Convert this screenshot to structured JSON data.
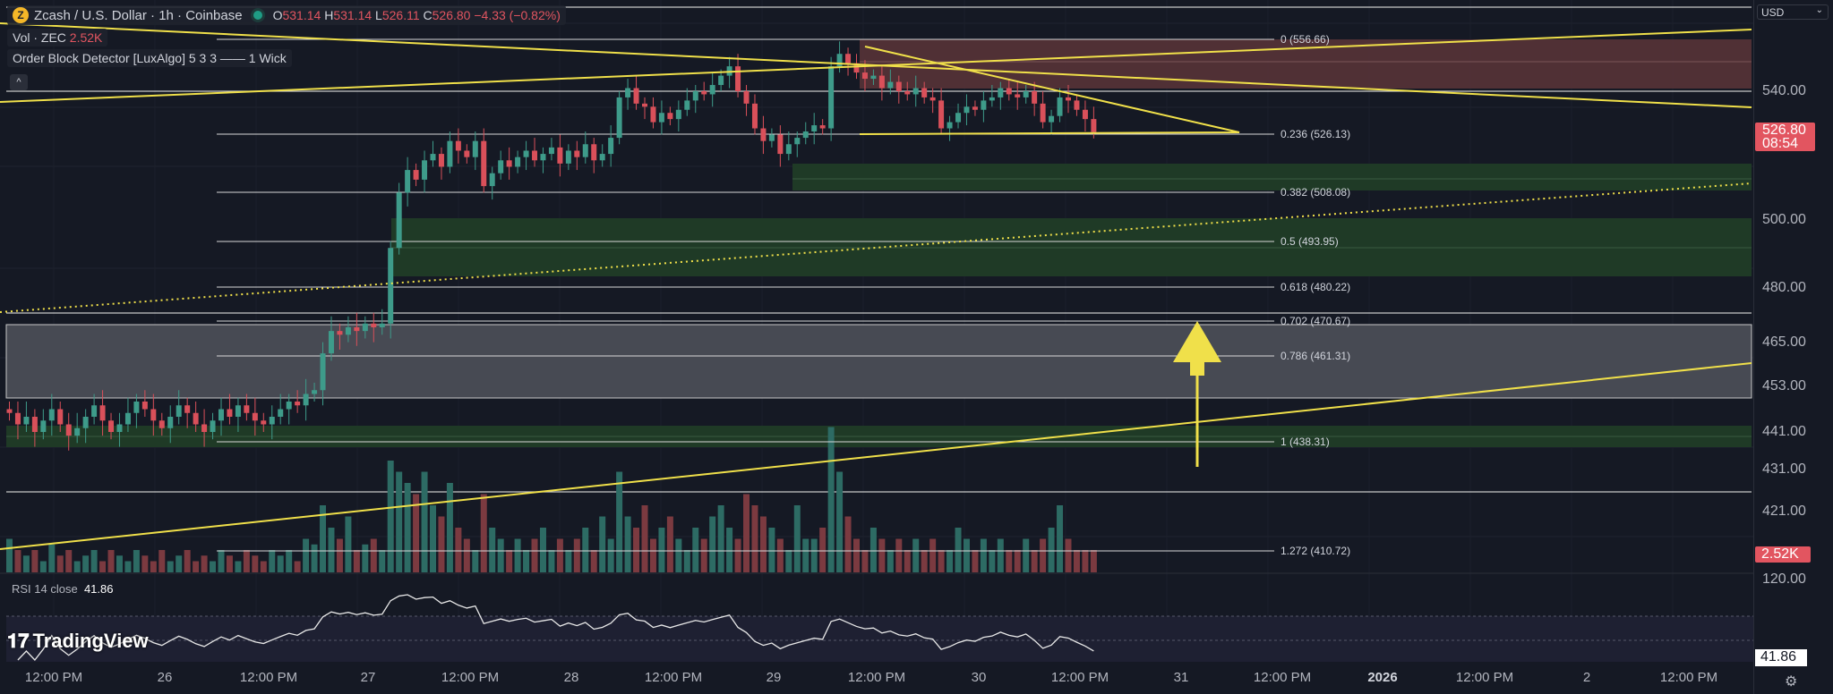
{
  "header": {
    "coin_symbol": "Z",
    "title": "Zcash / U.S. Dollar · 1h · Coinbase",
    "o_label": "O",
    "o": "531.14",
    "h_label": "H",
    "h": "531.14",
    "l_label": "L",
    "l": "526.11",
    "c_label": "C",
    "c": "526.80",
    "change": "−4.33 (−0.82%)"
  },
  "volume_legend": {
    "label": "Vol · ZEC",
    "value": "2.52K"
  },
  "indicator_legend": {
    "label": "Order Block Detector [LuxAlgo] 5 3 3 —— 1 Wick"
  },
  "collapse_icon": "^",
  "currency": "USD",
  "price_axis": {
    "labels": [
      "540.00",
      "500.00",
      "480.00",
      "465.00",
      "453.00",
      "441.00",
      "431.00",
      "421.00"
    ],
    "current_price": "526.80",
    "countdown": "08:54",
    "volume_tag": "2.52K",
    "rsi_top": "120.00",
    "rsi_tag": "41.86"
  },
  "fib_levels": [
    {
      "label": "0 (556.66)",
      "price": 556.66
    },
    {
      "label": "0.236 (526.13)",
      "price": 526.13
    },
    {
      "label": "0.382 (508.08)",
      "price": 508.08
    },
    {
      "label": "0.5 (493.95)",
      "price": 493.95
    },
    {
      "label": "0.618 (480.22)",
      "price": 480.22
    },
    {
      "label": "0.702 (470.67)",
      "price": 470.67
    },
    {
      "label": "0.786 (461.31)",
      "price": 461.31
    },
    {
      "label": "1 (438.31)",
      "price": 438.31
    },
    {
      "label": "1.272 (410.72)",
      "price": 410.72
    }
  ],
  "rsi": {
    "title": "RSI 14 close",
    "value": "41.86"
  },
  "time_axis": [
    "12:00 PM",
    "26",
    "12:00 PM",
    "27",
    "12:00 PM",
    "28",
    "12:00 PM",
    "29",
    "12:00 PM",
    "30",
    "12:00 PM",
    "31",
    "12:00 PM",
    "2026",
    "12:00 PM",
    "2",
    "12:00 PM"
  ],
  "branding": "TradingView",
  "colors": {
    "up": "#3e9b8a",
    "down": "#d9505a",
    "trend": "#f0e04a",
    "bg": "#151924"
  },
  "chart_data": {
    "type": "candlestick",
    "interval": "1h",
    "closes": [
      446,
      443,
      445,
      441,
      444,
      447,
      443,
      440,
      442,
      445,
      448,
      444,
      441,
      443,
      446,
      449,
      447,
      444,
      442,
      445,
      448,
      446,
      443,
      441,
      444,
      447,
      445,
      448,
      446,
      444,
      443,
      445,
      447,
      449,
      448,
      451,
      452,
      462,
      468,
      467,
      469,
      468,
      470,
      469,
      470,
      492,
      508,
      515,
      512,
      518,
      520,
      516,
      524,
      521,
      519,
      524,
      510,
      514,
      518,
      516,
      519,
      521,
      518,
      520,
      522,
      517,
      521,
      519,
      523,
      518,
      520,
      525,
      538,
      541,
      536,
      535,
      530,
      533,
      531,
      534,
      537,
      540,
      539,
      542,
      545,
      548,
      540,
      536,
      528,
      524,
      526,
      520,
      523,
      525,
      527,
      529,
      528,
      548,
      552,
      549,
      546,
      544,
      545,
      541,
      543,
      540,
      539,
      541,
      538,
      537,
      528,
      530,
      533,
      535,
      534,
      537,
      538,
      541,
      539,
      538,
      540,
      536,
      530,
      532,
      538,
      537,
      534,
      531,
      526.8
    ],
    "volumes": [
      3,
      2,
      1.5,
      2,
      1,
      2.5,
      1.5,
      2,
      1,
      1.5,
      2,
      1,
      2,
      1.5,
      1,
      2,
      1.5,
      1,
      2,
      1,
      1.5,
      2,
      1,
      1.5,
      1,
      2,
      1.5,
      1,
      2,
      1.5,
      1,
      2,
      1.5,
      2,
      1,
      3,
      2.5,
      6,
      4,
      3,
      5,
      2,
      2.5,
      3,
      2,
      10,
      9,
      8,
      7,
      9,
      6,
      5,
      8,
      4,
      3,
      2,
      7,
      4,
      3,
      2,
      3,
      2,
      3,
      4,
      2,
      3,
      2,
      3,
      4,
      2,
      5,
      3,
      9,
      5,
      4,
      6,
      3,
      4,
      5,
      3,
      2,
      4,
      3,
      5,
      6,
      4,
      3,
      7,
      6,
      5,
      4,
      3,
      2,
      6,
      3,
      3,
      4,
      13,
      9,
      5,
      3,
      2,
      4,
      3,
      2,
      3,
      2,
      3,
      2,
      3,
      2,
      2,
      4,
      3,
      2,
      3,
      2,
      3,
      2,
      2,
      3,
      2,
      3,
      4,
      6,
      3,
      2,
      2,
      2
    ]
  }
}
